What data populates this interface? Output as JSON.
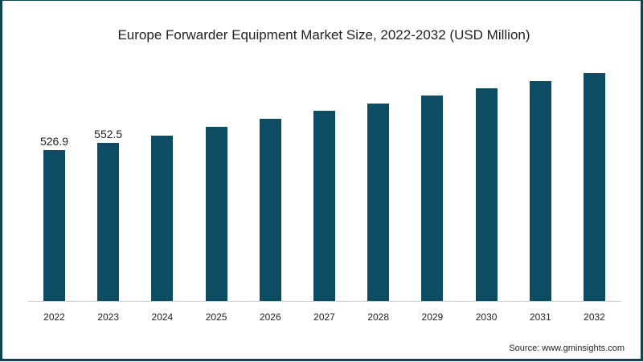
{
  "chart_data": {
    "type": "bar",
    "title": "Europe Forwarder Equipment Market Size, 2022-2032 (USD Million)",
    "xlabel": "",
    "ylabel": "",
    "categories": [
      "2022",
      "2023",
      "2024",
      "2025",
      "2026",
      "2027",
      "2028",
      "2029",
      "2030",
      "2031",
      "2032"
    ],
    "values": [
      526.9,
      552.5,
      578,
      608,
      636,
      664,
      690,
      718,
      743,
      768,
      796
    ],
    "data_labels": [
      "526.9",
      "552.5",
      "",
      "",
      "",
      "",
      "",
      "",
      "",
      "",
      ""
    ],
    "ylim": [
      0,
      850
    ],
    "grid": false,
    "legend": null,
    "bar_color": "#0d4d63",
    "source": "Source: www.gminsights.com"
  }
}
